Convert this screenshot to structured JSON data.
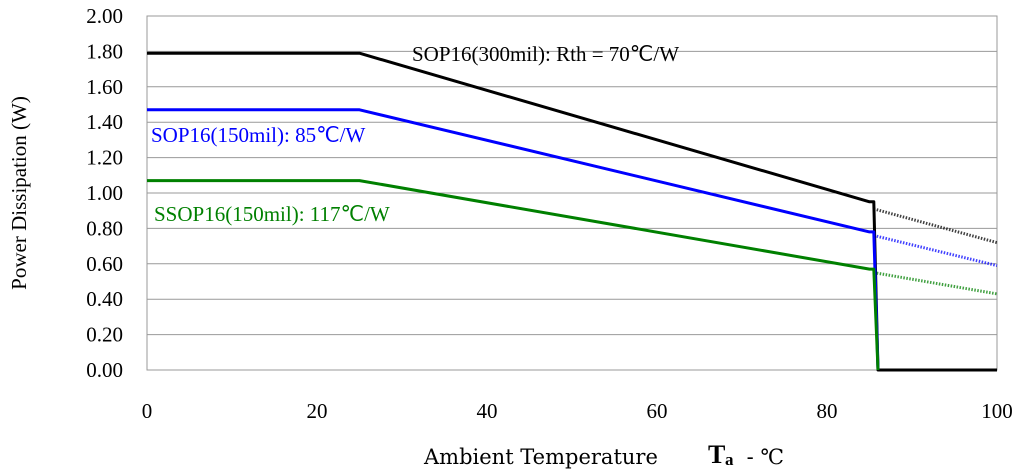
{
  "chart_data": {
    "type": "line",
    "title": "",
    "xlabel_main": "Ambient Temperature",
    "xlabel_symbol": "T",
    "xlabel_subscript": "a",
    "xlabel_unit": " - ℃",
    "ylabel": "Power Dissipation (W)",
    "xlim": [
      0,
      100
    ],
    "ylim": [
      0,
      2.0
    ],
    "x_ticks": [
      "0",
      "20",
      "40",
      "60",
      "80",
      "100"
    ],
    "y_ticks": [
      "0.00",
      "0.20",
      "0.40",
      "0.60",
      "0.80",
      "1.00",
      "1.20",
      "1.40",
      "1.60",
      "1.80",
      "2.00"
    ],
    "grid": "horizontal",
    "colors": {
      "sop300": "#000000",
      "sop150": "#0000ff",
      "ssop150": "#008000"
    },
    "series": [
      {
        "key": "sop300",
        "label": "SOP16(300mil): Rth = 70℃/W",
        "color": "#000000",
        "points": [
          [
            0,
            1.79
          ],
          [
            25,
            1.79
          ],
          [
            85,
            0.95
          ],
          [
            85.5,
            0.95
          ],
          [
            86,
            0
          ],
          [
            100,
            0
          ]
        ],
        "extension": [
          [
            85.5,
            0.91
          ],
          [
            100,
            0.72
          ]
        ]
      },
      {
        "key": "sop150",
        "label": "SOP16(150mil): 85℃/W",
        "color": "#0000ff",
        "points": [
          [
            0,
            1.47
          ],
          [
            25,
            1.47
          ],
          [
            85,
            0.78
          ],
          [
            85.5,
            0.78
          ],
          [
            86,
            0
          ]
        ],
        "extension": [
          [
            85.5,
            0.76
          ],
          [
            100,
            0.59
          ]
        ]
      },
      {
        "key": "ssop150",
        "label": "SSOP16(150mil): 117℃/W",
        "color": "#008000",
        "points": [
          [
            0,
            1.07
          ],
          [
            25,
            1.07
          ],
          [
            85,
            0.57
          ],
          [
            85.5,
            0.57
          ],
          [
            86,
            0
          ]
        ],
        "extension": [
          [
            85.5,
            0.55
          ],
          [
            100,
            0.43
          ]
        ]
      }
    ]
  }
}
